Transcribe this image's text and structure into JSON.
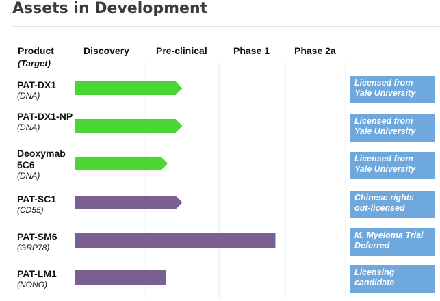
{
  "page": {
    "title": "Assets in Development"
  },
  "chart_data": {
    "type": "bar",
    "title": "Assets in Development",
    "columns": {
      "product": "Product",
      "target": "(Target)",
      "stages": [
        "Discovery",
        "Pre-clinical",
        "Phase 1",
        "Phase 2a"
      ]
    },
    "grid": true,
    "xlim": [
      0,
      4
    ],
    "rows": [
      {
        "name": "PAT-DX1",
        "target": "(DNA)",
        "progress_stages": 1.5,
        "color": "#4bd636",
        "shape": "arrow",
        "note": "Licensed from Yale University"
      },
      {
        "name": "PAT-DX1-NP",
        "target": "(DNA)",
        "progress_stages": 1.5,
        "color": "#4bd636",
        "shape": "arrow",
        "note": "Licensed from Yale University"
      },
      {
        "name": "Deoxymab 5C6",
        "target": "(DNA)",
        "progress_stages": 1.3,
        "color": "#4bd636",
        "shape": "arrow",
        "note": "Licensed from Yale University"
      },
      {
        "name": "PAT-SC1",
        "target": "(CD55)",
        "progress_stages": 1.5,
        "color": "#7b5e92",
        "shape": "arrow",
        "note": "Chinese rights out-licensed"
      },
      {
        "name": "PAT-SM6",
        "target": "(GRP78)",
        "progress_stages": 2.85,
        "color": "#7b5e92",
        "shape": "rect",
        "note": "M. Myeloma Trial Deferred"
      },
      {
        "name": "PAT-LM1",
        "target": "(NONO)",
        "progress_stages": 1.28,
        "color": "#7b5e92",
        "shape": "rect",
        "note": "Licensing candidate"
      }
    ]
  }
}
